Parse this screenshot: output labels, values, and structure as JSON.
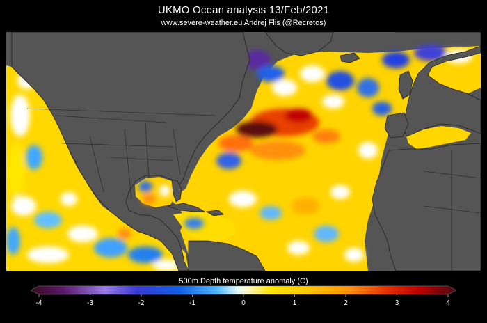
{
  "header": {
    "title": "UKMO Ocean analysis   13/Feb/2021",
    "subtitle": "www.severe-weather.eu   Andrej Flis (@Recretos)"
  },
  "map": {
    "land_color": "#555555",
    "border_color": "#222222",
    "variable": "500m Depth temperature anomaly"
  },
  "colorbar": {
    "label": "500m Depth temperature anomaly (C)",
    "min": -4,
    "max": 4,
    "ticks": [
      "-4",
      "-3",
      "-2",
      "-1",
      "0",
      "1",
      "2",
      "3",
      "4"
    ],
    "stops": [
      {
        "v": -4,
        "c": "#3a0a1e"
      },
      {
        "v": -3.4,
        "c": "#5a1a6a"
      },
      {
        "v": -2.6,
        "c": "#9b7be8"
      },
      {
        "v": -2,
        "c": "#3a3ad8"
      },
      {
        "v": -1.2,
        "c": "#1060e8"
      },
      {
        "v": -0.5,
        "c": "#50b8ff"
      },
      {
        "v": -0.1,
        "c": "#e8fbff"
      },
      {
        "v": 0.1,
        "c": "#fff8c0"
      },
      {
        "v": 0.5,
        "c": "#ffe800"
      },
      {
        "v": 1.2,
        "c": "#ffc800"
      },
      {
        "v": 2,
        "c": "#ff9010"
      },
      {
        "v": 2.7,
        "c": "#e83000"
      },
      {
        "v": 3.3,
        "c": "#c00000"
      },
      {
        "v": 4,
        "c": "#4a0a14"
      }
    ]
  }
}
